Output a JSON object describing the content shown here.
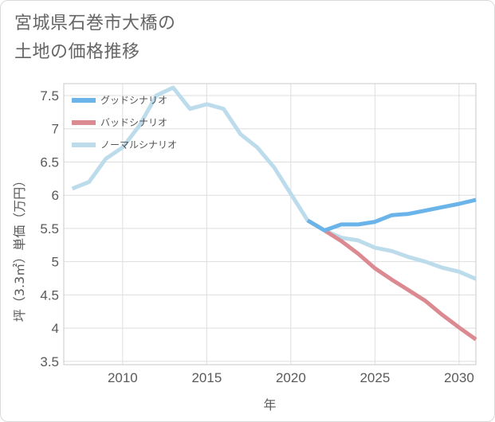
{
  "title": "宮城県石巻市大橋の\n土地の価格推移",
  "chart_data": {
    "type": "line",
    "xlabel": "年",
    "ylabel": "坪（3.3㎡）単価（万円）",
    "xlim": [
      2006.5,
      2031
    ],
    "ylim": [
      3.45,
      7.68
    ],
    "x_ticks": [
      2010,
      2015,
      2020,
      2025,
      2030
    ],
    "y_ticks": [
      3.5,
      4,
      4.5,
      5,
      5.5,
      6,
      6.5,
      7,
      7.5
    ],
    "x_tick_labels": [
      "2010",
      "2015",
      "2020",
      "2025",
      "2030"
    ],
    "y_tick_labels": [
      "3.5",
      "4",
      "4.5",
      "5",
      "5.5",
      "6",
      "6.5",
      "7",
      "7.5"
    ],
    "grid": true,
    "legend_position": "top-left",
    "series": [
      {
        "name": "グッドシナリオ",
        "color": "#6ab4ea",
        "x": [
          2021,
          2022,
          2023,
          2024,
          2025,
          2026,
          2027,
          2028,
          2029,
          2030,
          2031
        ],
        "y": [
          5.62,
          5.47,
          5.56,
          5.56,
          5.6,
          5.7,
          5.72,
          5.77,
          5.82,
          5.87,
          5.93
        ]
      },
      {
        "name": "バッドシナリオ",
        "color": "#dc8a92",
        "x": [
          2021,
          2022,
          2023,
          2024,
          2025,
          2026,
          2027,
          2028,
          2029,
          2030,
          2031
        ],
        "y": [
          5.62,
          5.47,
          5.31,
          5.12,
          4.9,
          4.73,
          4.57,
          4.41,
          4.2,
          4.01,
          3.83
        ]
      },
      {
        "name": "ノーマルシナリオ",
        "color": "#bcdcec",
        "x": [
          2007,
          2008,
          2009,
          2010,
          2011,
          2012,
          2013,
          2014,
          2015,
          2016,
          2017,
          2018,
          2019,
          2020,
          2021,
          2022,
          2023,
          2024,
          2025,
          2026,
          2027,
          2028,
          2029,
          2030,
          2031
        ],
        "y": [
          6.1,
          6.2,
          6.55,
          6.72,
          7.05,
          7.5,
          7.62,
          7.3,
          7.37,
          7.3,
          6.92,
          6.72,
          6.42,
          6.02,
          5.62,
          5.47,
          5.36,
          5.32,
          5.21,
          5.16,
          5.07,
          5.0,
          4.91,
          4.85,
          4.74
        ]
      }
    ]
  }
}
